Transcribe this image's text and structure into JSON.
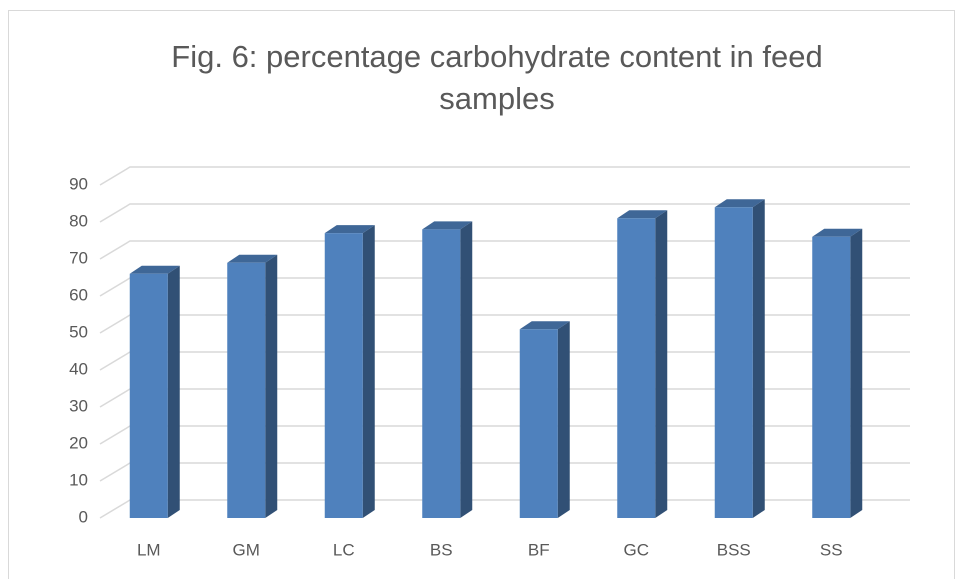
{
  "chart_data": {
    "type": "bar3d",
    "title": "Fig. 6: percentage carbohydrate content in feed samples",
    "categories": [
      "LM",
      "GM",
      "LC",
      "BS",
      "BF",
      "GC",
      "BSS",
      "SS"
    ],
    "values": [
      66,
      69,
      77,
      78,
      51,
      81,
      84,
      76
    ],
    "color": "#4f81bd",
    "ylim": [
      0,
      90
    ],
    "yticks": [
      0,
      10,
      20,
      30,
      40,
      50,
      60,
      70,
      80,
      90
    ],
    "grid": true
  }
}
